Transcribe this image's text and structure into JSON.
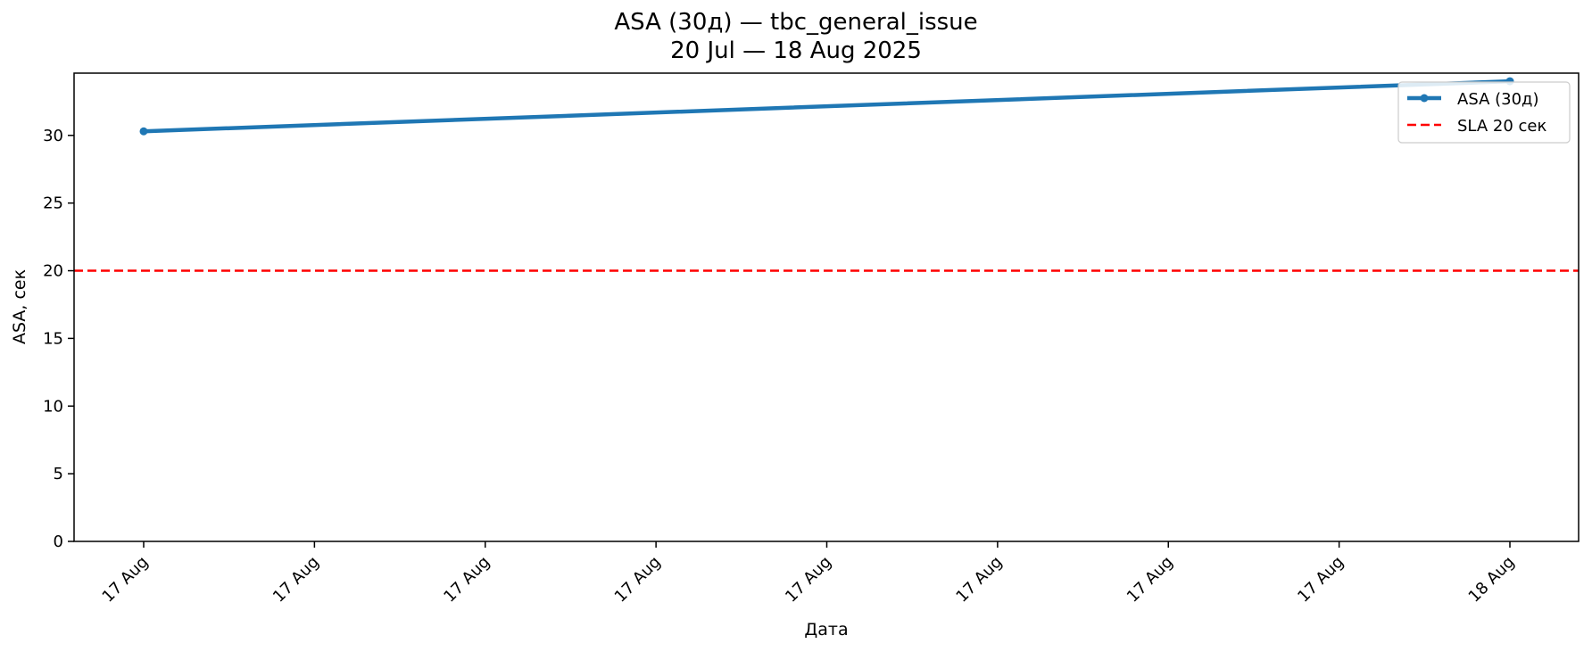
{
  "chart_data": {
    "type": "line",
    "title": "ASA (30д) — tbc_general_issue",
    "subtitle": "20 Jul — 18 Aug 2025",
    "xlabel": "Дата",
    "ylabel": "ASA, сек",
    "x_tick_labels": [
      "17 Aug",
      "17 Aug",
      "17 Aug",
      "17 Aug",
      "17 Aug",
      "17 Aug",
      "17 Aug",
      "17 Aug",
      "18 Aug"
    ],
    "y_ticks": [
      0,
      5,
      10,
      15,
      20,
      25,
      30
    ],
    "ylim": [
      0,
      34.6
    ],
    "grid": false,
    "legend_position": "top-right",
    "series": [
      {
        "name": "ASA (30д)",
        "color": "#1f77b4",
        "x": [
          "2025-08-17",
          "2025-08-18"
        ],
        "values": [
          30.3,
          34.0
        ]
      }
    ],
    "reference_lines": [
      {
        "name": "SLA 20 сек",
        "value": 20,
        "color": "#ff0000",
        "style": "dashed"
      }
    ]
  }
}
